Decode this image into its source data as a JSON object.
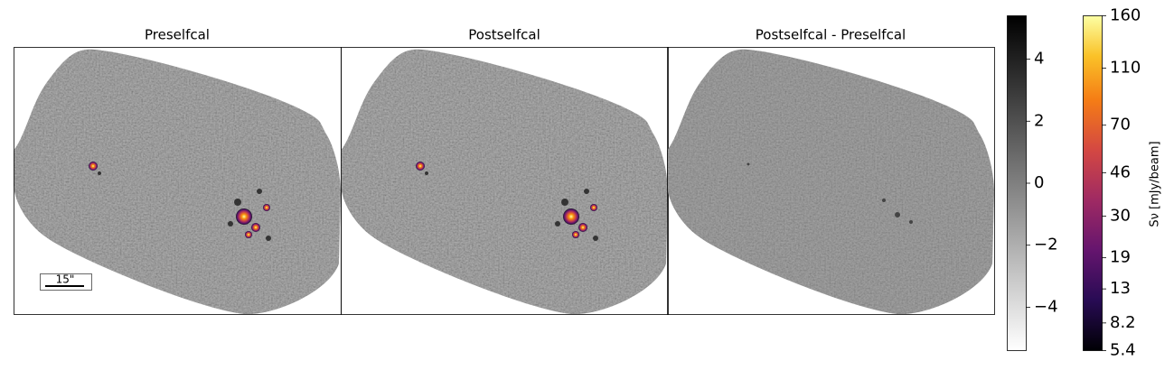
{
  "panels": [
    {
      "title": "Preselfcal"
    },
    {
      "title": "Postselfcal"
    },
    {
      "title": "Postselfcal - Preselfcal"
    }
  ],
  "scale_bar": {
    "label": "15\""
  },
  "colorbars": [
    {
      "colormap": "gray",
      "ylim": [
        -5.4,
        5.4
      ],
      "yticks": [
        4,
        2,
        0,
        {
          "value": -2,
          "label": "−2"
        },
        {
          "value": -4,
          "label": "−4"
        }
      ]
    },
    {
      "colormap": "inferno",
      "label": "Sν [mJy/beam]",
      "scale": "power",
      "exponent": 0.25,
      "ylim": [
        5.4,
        160
      ],
      "yticks": [
        160,
        110,
        70,
        46,
        30,
        19,
        13,
        8.2,
        5.4
      ]
    }
  ]
}
